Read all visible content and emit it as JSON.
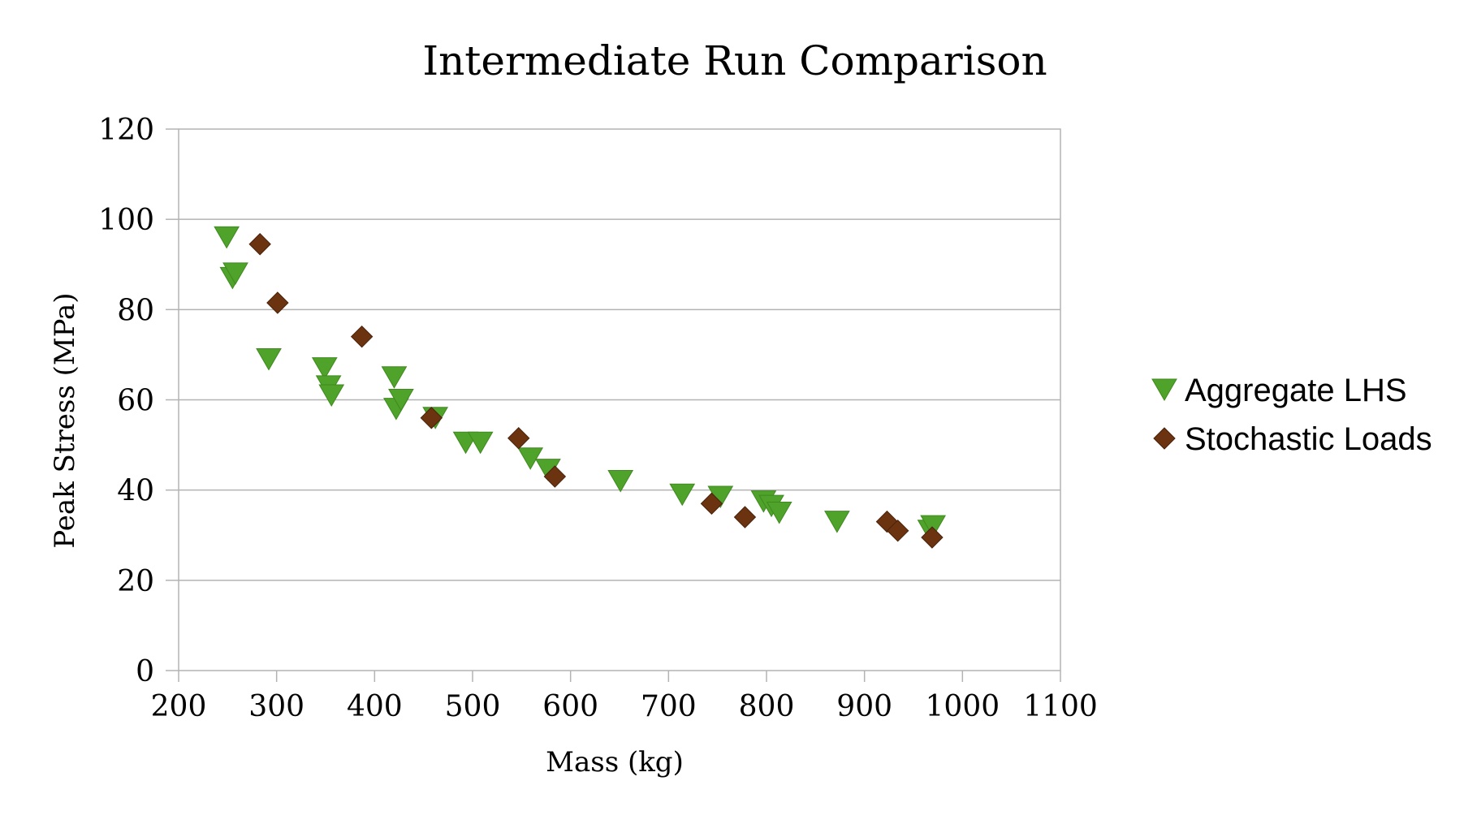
{
  "chart_data": {
    "type": "scatter",
    "title": "Intermediate Run Comparison",
    "xlabel": "Mass (kg)",
    "ylabel": "Peak Stress (MPa)",
    "xlim": [
      200,
      1100
    ],
    "ylim": [
      0,
      120
    ],
    "xticks": [
      200,
      300,
      400,
      500,
      600,
      700,
      800,
      900,
      1000,
      1100
    ],
    "yticks": [
      0,
      20,
      40,
      60,
      80,
      100,
      120
    ],
    "grid": "horizontal",
    "legend_position": "right",
    "series": [
      {
        "name": "Aggregate LHS",
        "marker": "triangle-down",
        "color": "#4fa22a",
        "points": [
          [
            249,
            96
          ],
          [
            255,
            87
          ],
          [
            258,
            88
          ],
          [
            292,
            69
          ],
          [
            349,
            67
          ],
          [
            353,
            63
          ],
          [
            356,
            61
          ],
          [
            420,
            65
          ],
          [
            422,
            58
          ],
          [
            427,
            60
          ],
          [
            462,
            56
          ],
          [
            493,
            50.5
          ],
          [
            508,
            50.5
          ],
          [
            559,
            47
          ],
          [
            577,
            44.5
          ],
          [
            651,
            42
          ],
          [
            714,
            39
          ],
          [
            753,
            38.5
          ],
          [
            797,
            37.5
          ],
          [
            805,
            36.5
          ],
          [
            813,
            35
          ],
          [
            872,
            33
          ],
          [
            967,
            31
          ],
          [
            970,
            32
          ]
        ]
      },
      {
        "name": "Stochastic Loads",
        "marker": "diamond",
        "color": "#6b3310",
        "points": [
          [
            283,
            94.5
          ],
          [
            301,
            81.5
          ],
          [
            387,
            74
          ],
          [
            458,
            56
          ],
          [
            547,
            51.5
          ],
          [
            584,
            43
          ],
          [
            744,
            37
          ],
          [
            778,
            34
          ],
          [
            923,
            33
          ],
          [
            934,
            31
          ],
          [
            969,
            29.5
          ]
        ]
      }
    ]
  }
}
